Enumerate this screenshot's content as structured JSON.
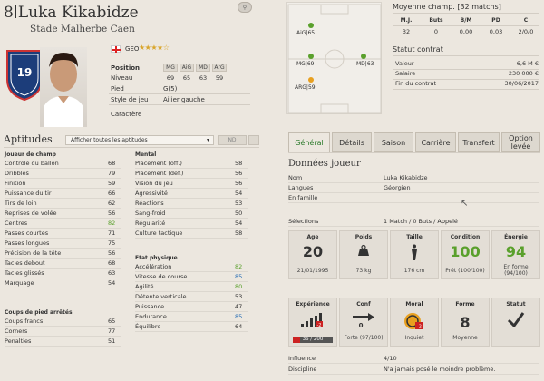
{
  "player": {
    "number": "8",
    "name": "Luka Kikabidze",
    "club": "Stade Malherbe Caen",
    "nationality": "GEO",
    "stars": "★★★★☆"
  },
  "profile": {
    "position_label": "Position",
    "positions": [
      "MG",
      "AiG",
      "MD",
      "ArG"
    ],
    "level_label": "Niveau",
    "levels": [
      "69",
      "65",
      "63",
      "59"
    ],
    "foot_label": "Pied",
    "foot_value": "G(5)",
    "style_label": "Style de jeu",
    "style_value": "Ailier gauche",
    "character_label": "Caractère"
  },
  "aptitudes": {
    "title": "Aptitudes",
    "select_value": "Afficher toutes les aptitudes",
    "nd_label": "ND",
    "joueur_de_champ_title": "Joueur de champ",
    "joueur_de_champ": [
      {
        "name": "Contrôle du ballon",
        "value": "68"
      },
      {
        "name": "Dribbles",
        "value": "79"
      },
      {
        "name": "Finition",
        "value": "59"
      },
      {
        "name": "Puissance du tir",
        "value": "66"
      },
      {
        "name": "Tirs de loin",
        "value": "62"
      },
      {
        "name": "Reprises de volée",
        "value": "56"
      },
      {
        "name": "Centres",
        "value": "82"
      },
      {
        "name": "Passes courtes",
        "value": "71"
      },
      {
        "name": "Passes longues",
        "value": "75"
      },
      {
        "name": "Précision de la tête",
        "value": "56"
      },
      {
        "name": "Tacles debout",
        "value": "68"
      },
      {
        "name": "Tacles glissés",
        "value": "63"
      },
      {
        "name": "Marquage",
        "value": "54"
      }
    ],
    "coups_title": "Coups de pied arrêtés",
    "coups": [
      {
        "name": "Coups francs",
        "value": "65"
      },
      {
        "name": "Corners",
        "value": "77"
      },
      {
        "name": "Penalties",
        "value": "51"
      }
    ],
    "mental_title": "Mental",
    "mental": [
      {
        "name": "Placement (off.)",
        "value": "58"
      },
      {
        "name": "Placement (déf.)",
        "value": "56"
      },
      {
        "name": "Vision du jeu",
        "value": "56"
      },
      {
        "name": "Agressivité",
        "value": "54"
      },
      {
        "name": "Réactions",
        "value": "53"
      },
      {
        "name": "Sang-froid",
        "value": "50"
      },
      {
        "name": "Régularité",
        "value": "54"
      },
      {
        "name": "Culture tactique",
        "value": "58"
      }
    ],
    "physique_title": "Etat physique",
    "physique": [
      {
        "name": "Accélération",
        "value": "82"
      },
      {
        "name": "Vitesse de course",
        "value": "85"
      },
      {
        "name": "Agilité",
        "value": "80"
      },
      {
        "name": "Détente verticale",
        "value": "53"
      },
      {
        "name": "Puissance",
        "value": "47"
      },
      {
        "name": "Endurance",
        "value": "85"
      },
      {
        "name": "Équilibre",
        "value": "64"
      }
    ]
  },
  "pitch": {
    "labels": [
      "AiG|65",
      "MG|69",
      "MD|63",
      "ARG|59"
    ]
  },
  "moyenne": {
    "title": "Moyenne champ. [32 matchs]",
    "headers": [
      "M.J.",
      "Buts",
      "B/M",
      "PD",
      "C"
    ],
    "values": [
      "32",
      "0",
      "0,00",
      "0,03",
      "2/0/0"
    ]
  },
  "contrat": {
    "title": "Statut contrat",
    "rows": [
      {
        "label": "Valeur",
        "value": "6,6 M €"
      },
      {
        "label": "Salaire",
        "value": "230 000 €"
      },
      {
        "label": "Fin du contrat",
        "value": "30/06/2017"
      }
    ]
  },
  "tabs": [
    "Général",
    "Détails",
    "Saison",
    "Carrière",
    "Transfert",
    "Option levée"
  ],
  "donnees": {
    "title": "Données joueur",
    "rows": [
      {
        "label": "Nom",
        "value": "Luka Kikabidze"
      },
      {
        "label": "Langues",
        "value": "Géorgien"
      },
      {
        "label": "En famille",
        "value": ""
      },
      {
        "label": "Sélections",
        "value": "1 Match / 0 Buts / Appelé"
      }
    ]
  },
  "cards1": [
    {
      "title": "Age",
      "big": "20",
      "sub": "21/01/1995"
    },
    {
      "title": "Poids",
      "big": "",
      "sub": "73 kg"
    },
    {
      "title": "Taille",
      "big": "",
      "sub": "176 cm"
    },
    {
      "title": "Condition",
      "big": "100",
      "sub": "Prêt (100/100)"
    },
    {
      "title": "Énergie",
      "big": "94",
      "sub": "En forme (94/100)"
    }
  ],
  "cards2": [
    {
      "title": "Expérience",
      "big": "",
      "sub": "36 / 200"
    },
    {
      "title": "Conf",
      "big": "",
      "sub": "Forte (97/100)"
    },
    {
      "title": "Moral",
      "big": "",
      "sub": "Inquiet"
    },
    {
      "title": "Forme",
      "big": "8",
      "sub": "Moyenne"
    },
    {
      "title": "Statut",
      "big": "",
      "sub": ""
    }
  ],
  "footer": [
    {
      "label": "Influence",
      "value": "4/10"
    },
    {
      "label": "Discipline",
      "value": "N'a jamais posé le moindre problème."
    }
  ],
  "colors": {
    "green": "#5aa02c",
    "blue": "#2a6fb5",
    "orange": "#e8a020",
    "accent": "#2a7a2a"
  }
}
